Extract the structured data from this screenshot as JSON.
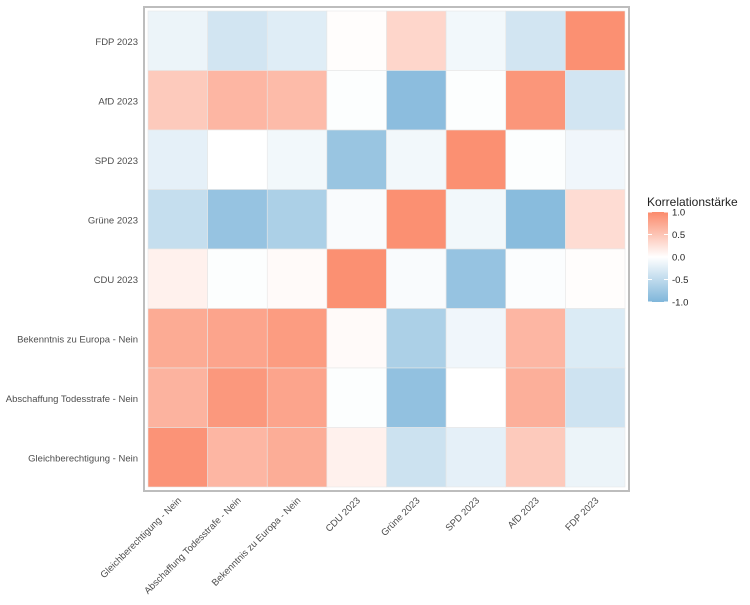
{
  "chart_data": {
    "type": "heatmap",
    "title": "",
    "xlabel": "",
    "ylabel": "",
    "x_categories": [
      "Gleichberechtigung - Nein",
      "Abschaffung Todesstrafe - Nein",
      "Bekenntnis zu Europa - Nein",
      "CDU  2023",
      "Grüne  2023",
      "SPD  2023",
      "AfD  2023",
      "FDP  2023"
    ],
    "y_categories": [
      "FDP  2023",
      "AfD  2023",
      "SPD  2023",
      "Grüne  2023",
      "CDU  2023",
      "Bekenntnis zu Europa - Nein",
      "Abschaffung Todesstrafe - Nein",
      "Gleichberechtigung - Nein"
    ],
    "values": [
      [
        -0.15,
        -0.35,
        -0.25,
        0.02,
        0.35,
        -0.1,
        -0.35,
        0.95
      ],
      [
        0.45,
        0.62,
        0.58,
        -0.02,
        -0.9,
        -0.02,
        0.9,
        -0.35
      ],
      [
        -0.2,
        0.0,
        -0.1,
        -0.8,
        -0.1,
        0.95,
        -0.02,
        -0.12
      ],
      [
        -0.45,
        -0.82,
        -0.65,
        -0.05,
        0.95,
        -0.1,
        -0.92,
        0.3
      ],
      [
        0.12,
        -0.02,
        0.04,
        0.95,
        -0.05,
        -0.82,
        -0.03,
        0.02
      ],
      [
        0.72,
        0.78,
        0.85,
        0.04,
        -0.65,
        -0.12,
        0.62,
        -0.28
      ],
      [
        0.65,
        0.88,
        0.78,
        -0.02,
        -0.85,
        0.0,
        0.68,
        -0.38
      ],
      [
        0.92,
        0.62,
        0.7,
        0.12,
        -0.4,
        -0.2,
        0.45,
        -0.15
      ]
    ],
    "legend": {
      "title": "Korrelationstärke",
      "ticks": [
        "1.0",
        "0.5",
        "0.0",
        "-0.5",
        "-1.0"
      ],
      "tick_values": [
        1.0,
        0.5,
        0.0,
        -0.5,
        -1.0
      ],
      "position": "right"
    },
    "colors": {
      "low": "#7fb6da",
      "mid": "#ffffff",
      "high": "#fb8a6b",
      "panel_border": "#bdbdbd",
      "grid": "#e6e6e6"
    },
    "range": [
      -1.0,
      1.0
    ],
    "grid": true
  }
}
